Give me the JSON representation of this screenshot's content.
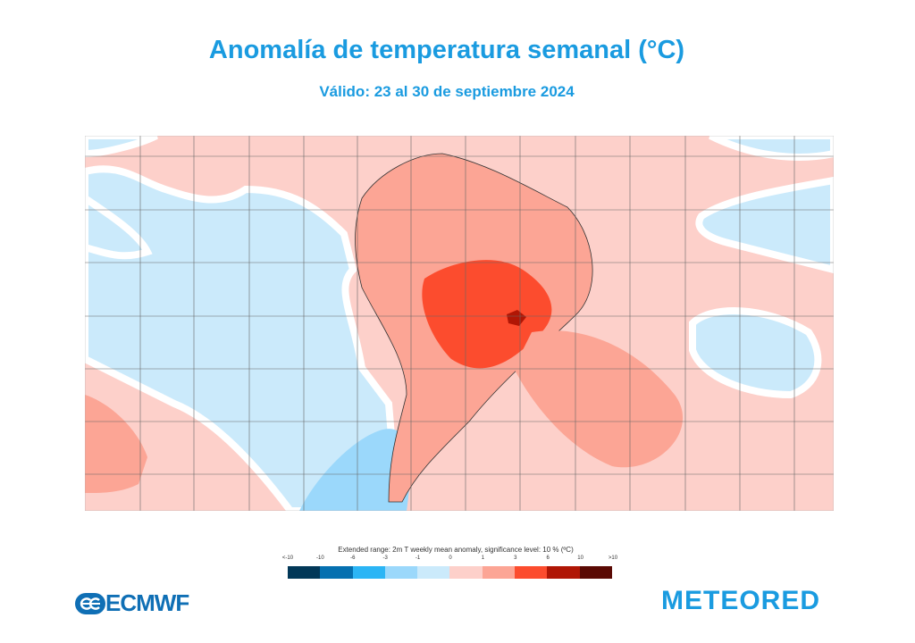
{
  "header": {
    "title": "Anomalía de temperatura semanal  (°C)",
    "subtitle": "Válido: 23 al 30 de septiembre 2024"
  },
  "colorbar": {
    "title": "Extended range: 2m T weekly mean anomaly, significance level: 10 % (ºC)",
    "ticks": [
      "<-10",
      "-10",
      "-6",
      "-3",
      "-1",
      "0",
      "1",
      "3",
      "6",
      "10",
      ">10"
    ],
    "colors": [
      "#023858",
      "#0570b0",
      "#2bb5f5",
      "#9bd8fb",
      "#cbeafb",
      "#fdd0ca",
      "#fca595",
      "#fc4c2e",
      "#b01605",
      "#5a0a04"
    ]
  },
  "logos": {
    "left": "ECMWF",
    "right": "METEORED"
  }
}
